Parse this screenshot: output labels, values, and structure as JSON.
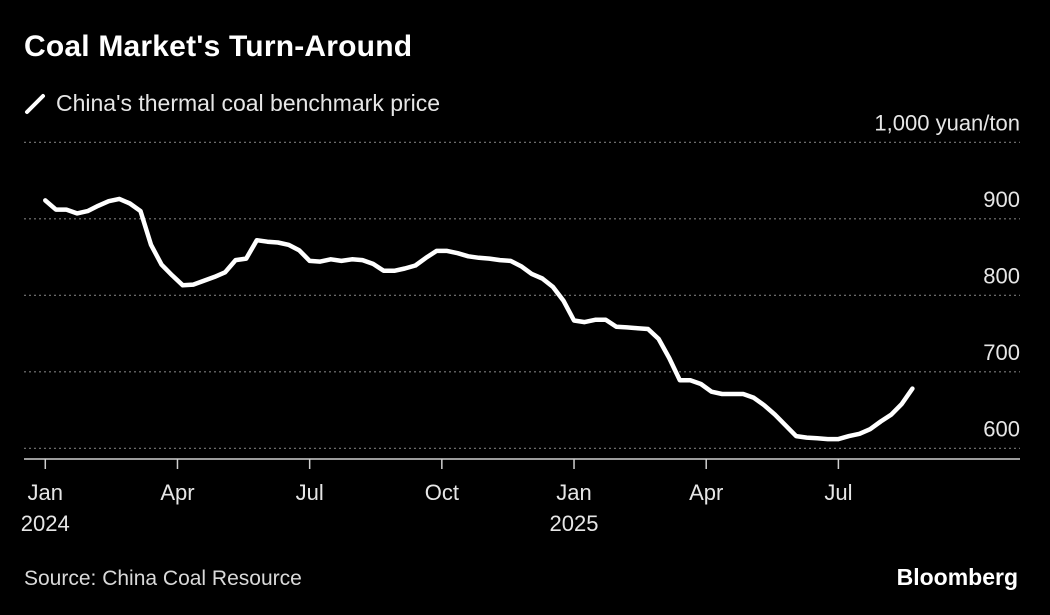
{
  "header": {
    "title": "Coal Market's Turn-Around"
  },
  "legend": {
    "label": "China's thermal coal benchmark price",
    "icon": "line-swatch-icon"
  },
  "footer": {
    "source": "Source: China Coal Resource",
    "brand": "Bloomberg"
  },
  "colors": {
    "background": "#000000",
    "line": "#ffffff",
    "grid": "#7a7a7a",
    "text": "#e6e6e6"
  },
  "chart_data": {
    "type": "line",
    "title": "Coal Market's Turn-Around",
    "series": [
      {
        "name": "China's thermal coal benchmark price",
        "x": [
          2024.0,
          2024.02,
          2024.04,
          2024.06,
          2024.08,
          2024.1,
          2024.12,
          2024.14,
          2024.16,
          2024.18,
          2024.2,
          2024.22,
          2024.24,
          2024.26,
          2024.28,
          2024.3,
          2024.32,
          2024.34,
          2024.36,
          2024.38,
          2024.4,
          2024.42,
          2024.44,
          2024.46,
          2024.48,
          2024.5,
          2024.52,
          2024.54,
          2024.56,
          2024.58,
          2024.6,
          2024.62,
          2024.64,
          2024.66,
          2024.68,
          2024.7,
          2024.72,
          2024.74,
          2024.76,
          2024.78,
          2024.8,
          2024.82,
          2024.84,
          2024.86,
          2024.88,
          2024.9,
          2024.92,
          2024.94,
          2024.96,
          2024.98,
          2025.0,
          2025.02,
          2025.04,
          2025.06,
          2025.08,
          2025.1,
          2025.12,
          2025.14,
          2025.16,
          2025.18,
          2025.2,
          2025.22,
          2025.24,
          2025.26,
          2025.28,
          2025.3,
          2025.32,
          2025.34,
          2025.36,
          2025.38,
          2025.4,
          2025.42,
          2025.44,
          2025.46,
          2025.48,
          2025.5,
          2025.52,
          2025.54,
          2025.56,
          2025.58,
          2025.6,
          2025.62,
          2025.64
        ],
        "values": [
          924,
          912,
          912,
          907,
          910,
          917,
          923,
          926,
          920,
          910,
          866,
          840,
          826,
          813,
          814,
          819,
          824,
          830,
          846,
          848,
          872,
          870,
          869,
          866,
          859,
          845,
          844,
          847,
          845,
          847,
          846,
          841,
          832,
          832,
          835,
          839,
          849,
          858,
          858,
          855,
          851,
          849,
          848,
          846,
          845,
          838,
          828,
          822,
          811,
          793,
          767,
          765,
          768,
          768,
          759,
          758,
          757,
          756,
          743,
          718,
          689,
          689,
          684,
          674,
          671,
          671,
          671,
          666,
          656,
          644,
          630,
          616,
          614,
          613,
          612,
          612,
          616,
          619,
          625,
          635,
          644,
          658,
          678
        ]
      }
    ],
    "ylabel": "1,000 yuan/ton",
    "ylim": [
      586,
      986
    ],
    "yticks": [
      600,
      700,
      800,
      900
    ],
    "ytick_labels": [
      "600",
      "700",
      "800",
      "900",
      "1,000 yuan/ton"
    ],
    "ytick_label_values": [
      600,
      700,
      800,
      900,
      1000
    ],
    "xlim": [
      2023.99,
      2025.73
    ],
    "xticks": [
      {
        "value": 2024.0,
        "label": "Jan",
        "sublabel": "2024"
      },
      {
        "value": 2024.25,
        "label": "Apr",
        "sublabel": ""
      },
      {
        "value": 2024.5,
        "label": "Jul",
        "sublabel": ""
      },
      {
        "value": 2024.75,
        "label": "Oct",
        "sublabel": ""
      },
      {
        "value": 2025.0,
        "label": "Jan",
        "sublabel": "2025"
      },
      {
        "value": 2025.25,
        "label": "Apr",
        "sublabel": ""
      },
      {
        "value": 2025.5,
        "label": "Jul",
        "sublabel": ""
      }
    ],
    "grid": true,
    "legend_position": "top-left"
  }
}
